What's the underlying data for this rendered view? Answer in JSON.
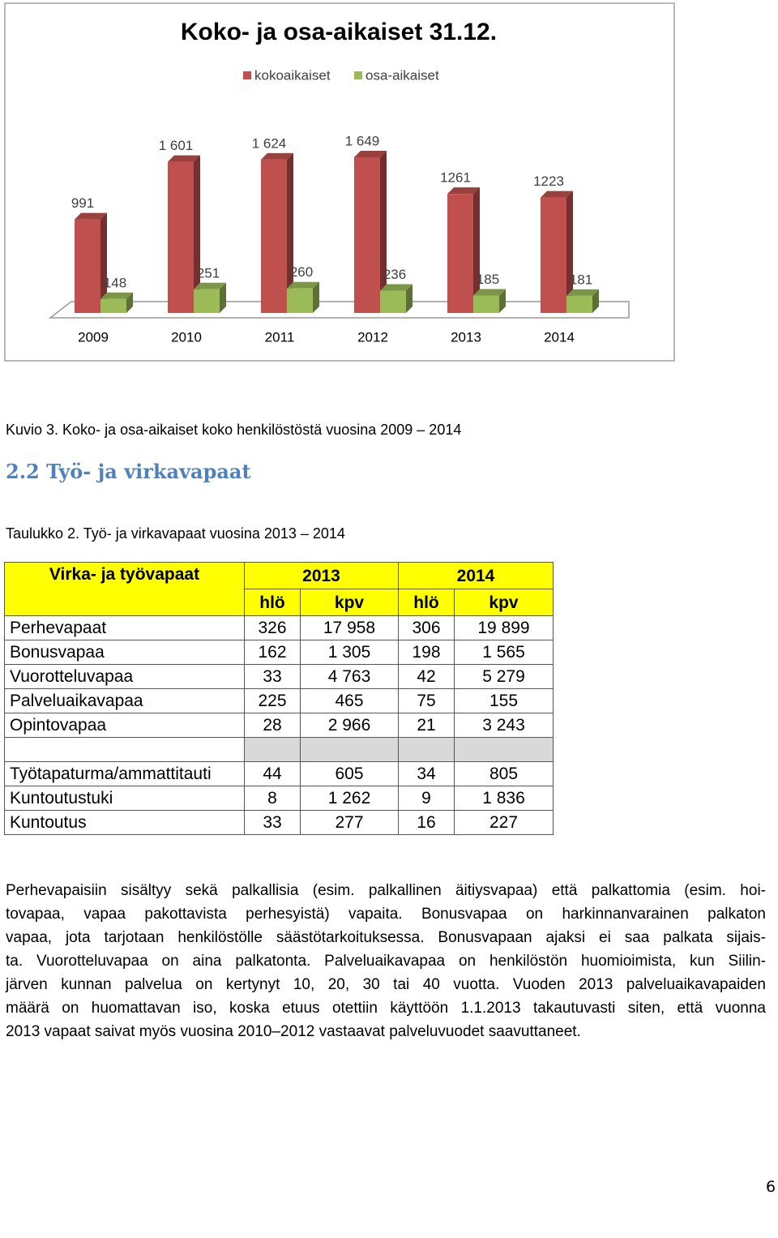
{
  "chart_data": {
    "type": "bar",
    "title": "Koko- ja osa-aikaiset 31.12.",
    "categories": [
      "2009",
      "2010",
      "2011",
      "2012",
      "2013",
      "2014"
    ],
    "series": [
      {
        "name": "kokoaikaiset",
        "color": "#c0504d",
        "values": [
          991,
          1601,
          1624,
          1649,
          1261,
          1223
        ],
        "value_labels": [
          "991",
          "1 601",
          "1 624",
          "1 649",
          "1261",
          "1223"
        ]
      },
      {
        "name": "osa-aikaiset",
        "color": "#9bbb59",
        "values": [
          148,
          251,
          260,
          236,
          185,
          181
        ]
      }
    ]
  },
  "figure_caption": "Kuvio 3. Koko- ja osa-aikaiset koko henkilöstöstä vuosina 2009 – 2014",
  "heading": "2.2 Työ- ja virkavapaat",
  "table_caption": "Taulukko 2. Työ- ja virkavapaat vuosina 2013 – 2014",
  "table": {
    "header": [
      "Virka- ja työvapaat",
      "2013",
      "2014"
    ],
    "subheader": [
      "hlö",
      "kpv",
      "hlö",
      "kpv"
    ],
    "groups": [
      [
        [
          "Perhevapaat",
          "326",
          "17 958",
          "306",
          "19 899"
        ],
        [
          "Bonusvapaa",
          "162",
          "1 305",
          "198",
          "1 565"
        ],
        [
          "Vuorotteluvapaa",
          "33",
          "4 763",
          "42",
          "5 279"
        ],
        [
          "Palveluaikavapaa",
          "225",
          "465",
          "75",
          "155"
        ],
        [
          "Opintovapaa",
          "28",
          "2 966",
          "21",
          "3 243"
        ]
      ],
      [
        [
          "Työtapaturma/ammattitauti",
          "44",
          "605",
          "34",
          "805"
        ],
        [
          "Kuntoutustuki",
          "8",
          "1 262",
          "9",
          "1 836"
        ],
        [
          "Kuntoutus",
          "33",
          "277",
          "16",
          "227"
        ]
      ]
    ]
  },
  "paragraph": [
    "Perhevapaisiin sisältyy sekä palkallisia (esim. palkallinen äitiysvapaa) että palkattomia (esim. hoi-",
    "tovapaa, vapaa pakottavista perhesyistä) vapaita. Bonusvapaa on harkinnanvarainen palkaton",
    "vapaa, jota tarjotaan henkilöstölle säästötarkoituksessa. Bonusvapaan ajaksi ei saa palkata sijais-",
    "ta. Vuorotteluvapaa on aina palkatonta. Palveluaikavapaa on henkilöstön huomioimista, kun Siilin-",
    "järven kunnan palvelua on kertynyt 10, 20, 30 tai 40 vuotta.  Vuoden 2013 palveluaikavapaiden",
    "määrä on huomattavan iso, koska etuus otettiin käyttöön 1.1.2013 takautuvasti siten, että vuonna",
    "2013 vapaat saivat myös vuosina 2010–2012 vastaavat palveluvuodet saavuttaneet."
  ],
  "page_number": "6"
}
